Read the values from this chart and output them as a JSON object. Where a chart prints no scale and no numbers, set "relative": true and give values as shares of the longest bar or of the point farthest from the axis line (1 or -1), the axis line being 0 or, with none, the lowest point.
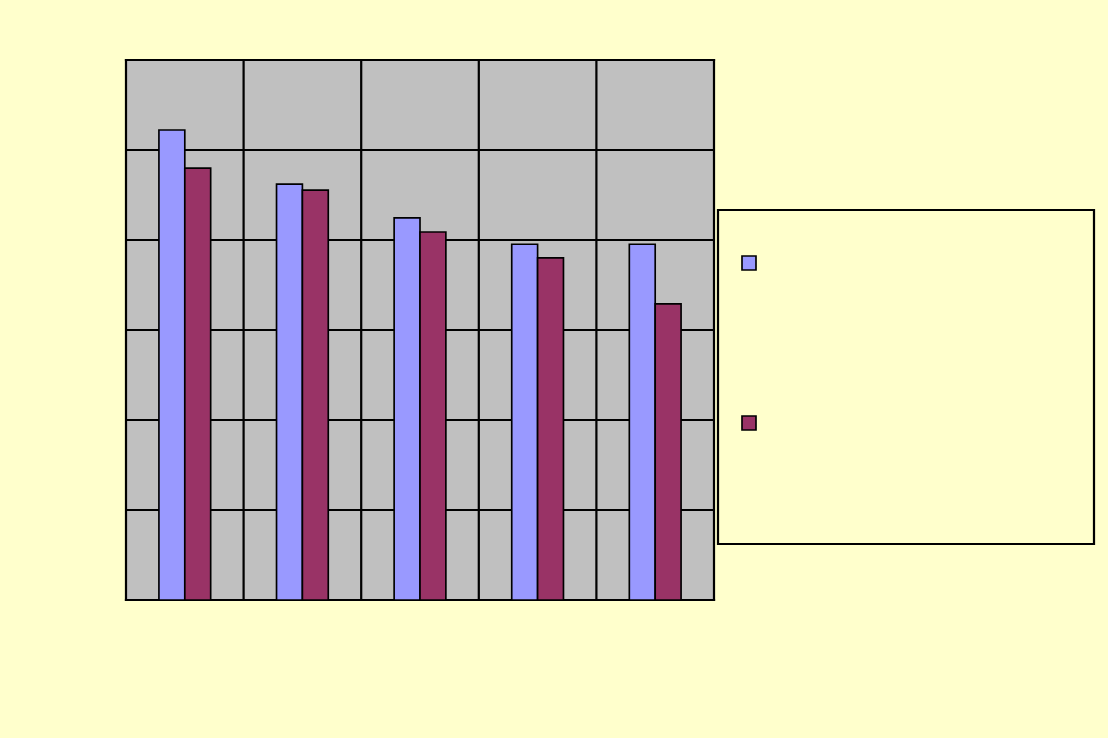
{
  "chart_data": {
    "type": "bar",
    "relative": true,
    "categories": [
      null,
      null,
      null,
      null,
      null
    ],
    "series": [
      {
        "color": "#9999ff",
        "values": [
          1,
          0.885,
          0.813,
          0.757,
          0.757
        ]
      },
      {
        "color": "#993366",
        "values": [
          0.919,
          0.872,
          0.783,
          0.728,
          0.63
        ]
      }
    ],
    "grid": true
  }
}
